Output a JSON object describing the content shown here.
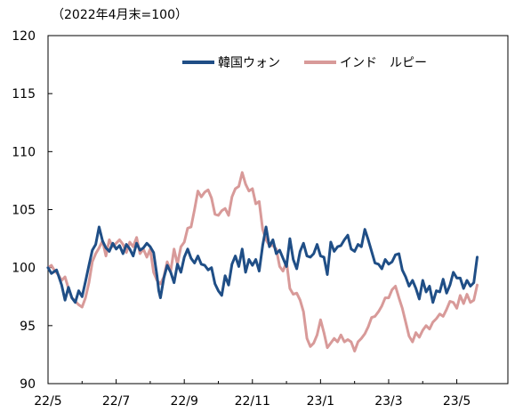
{
  "chart_data": {
    "type": "line",
    "note": "（2022年4月末=100）",
    "ylim": [
      90,
      120
    ],
    "yticks": [
      90,
      95,
      100,
      105,
      110,
      115,
      120
    ],
    "xlim": [
      0,
      13.5
    ],
    "xticks": [
      {
        "label": "22/5",
        "pos": 0
      },
      {
        "label": "22/7",
        "pos": 2
      },
      {
        "label": "22/9",
        "pos": 4
      },
      {
        "label": "22/11",
        "pos": 6
      },
      {
        "label": "23/1",
        "pos": 8
      },
      {
        "label": "23/3",
        "pos": 10
      },
      {
        "label": "23/5",
        "pos": 12
      }
    ],
    "grid": false,
    "legend_position": "top-right",
    "series": [
      {
        "name": "韓国ウォン",
        "color": "#1f4e86",
        "points": [
          [
            0,
            100
          ],
          [
            0.1,
            99.5
          ],
          [
            0.25,
            99.8
          ],
          [
            0.4,
            98.5
          ],
          [
            0.5,
            97.2
          ],
          [
            0.6,
            98.3
          ],
          [
            0.7,
            97.4
          ],
          [
            0.8,
            97.0
          ],
          [
            0.9,
            98.0
          ],
          [
            1.0,
            97.5
          ],
          [
            1.1,
            98.8
          ],
          [
            1.2,
            100.2
          ],
          [
            1.3,
            101.5
          ],
          [
            1.4,
            102.0
          ],
          [
            1.5,
            103.5
          ],
          [
            1.6,
            102.3
          ],
          [
            1.7,
            101.7
          ],
          [
            1.8,
            101.4
          ],
          [
            1.9,
            102.1
          ],
          [
            2.0,
            101.6
          ],
          [
            2.1,
            101.9
          ],
          [
            2.2,
            101.2
          ],
          [
            2.3,
            102.0
          ],
          [
            2.4,
            101.6
          ],
          [
            2.5,
            101.0
          ],
          [
            2.6,
            102.1
          ],
          [
            2.7,
            101.5
          ],
          [
            2.8,
            101.7
          ],
          [
            2.9,
            102.1
          ],
          [
            3.0,
            101.8
          ],
          [
            3.1,
            101.3
          ],
          [
            3.2,
            99.3
          ],
          [
            3.25,
            98.0
          ],
          [
            3.3,
            97.4
          ],
          [
            3.4,
            99.1
          ],
          [
            3.5,
            100.2
          ],
          [
            3.6,
            99.6
          ],
          [
            3.7,
            98.7
          ],
          [
            3.8,
            100.3
          ],
          [
            3.9,
            99.6
          ],
          [
            4.0,
            100.9
          ],
          [
            4.1,
            101.6
          ],
          [
            4.2,
            100.8
          ],
          [
            4.3,
            100.4
          ],
          [
            4.4,
            101.0
          ],
          [
            4.5,
            100.3
          ],
          [
            4.6,
            100.2
          ],
          [
            4.7,
            99.8
          ],
          [
            4.8,
            100.0
          ],
          [
            4.9,
            98.6
          ],
          [
            5.0,
            98.0
          ],
          [
            5.1,
            97.6
          ],
          [
            5.2,
            99.3
          ],
          [
            5.3,
            98.5
          ],
          [
            5.4,
            100.3
          ],
          [
            5.5,
            101.0
          ],
          [
            5.6,
            100.1
          ],
          [
            5.7,
            101.6
          ],
          [
            5.8,
            99.6
          ],
          [
            5.9,
            100.7
          ],
          [
            6.0,
            100.2
          ],
          [
            6.1,
            100.7
          ],
          [
            6.2,
            99.7
          ],
          [
            6.3,
            101.9
          ],
          [
            6.4,
            103.5
          ],
          [
            6.5,
            101.8
          ],
          [
            6.6,
            102.4
          ],
          [
            6.7,
            101.2
          ],
          [
            6.8,
            101.5
          ],
          [
            6.9,
            100.8
          ],
          [
            7.0,
            100.1
          ],
          [
            7.1,
            102.5
          ],
          [
            7.2,
            100.7
          ],
          [
            7.3,
            99.9
          ],
          [
            7.4,
            101.4
          ],
          [
            7.5,
            102.1
          ],
          [
            7.6,
            101.0
          ],
          [
            7.7,
            100.9
          ],
          [
            7.8,
            101.2
          ],
          [
            7.9,
            102.0
          ],
          [
            8.0,
            101.0
          ],
          [
            8.1,
            100.9
          ],
          [
            8.2,
            99.4
          ],
          [
            8.3,
            102.2
          ],
          [
            8.4,
            101.4
          ],
          [
            8.5,
            101.8
          ],
          [
            8.6,
            101.9
          ],
          [
            8.7,
            102.4
          ],
          [
            8.8,
            102.8
          ],
          [
            8.9,
            101.6
          ],
          [
            9.0,
            101.4
          ],
          [
            9.1,
            102.0
          ],
          [
            9.2,
            101.8
          ],
          [
            9.3,
            103.3
          ],
          [
            9.4,
            102.4
          ],
          [
            9.5,
            101.4
          ],
          [
            9.6,
            100.4
          ],
          [
            9.7,
            100.3
          ],
          [
            9.8,
            99.9
          ],
          [
            9.9,
            100.7
          ],
          [
            10.0,
            100.3
          ],
          [
            10.1,
            100.5
          ],
          [
            10.2,
            101.1
          ],
          [
            10.3,
            101.2
          ],
          [
            10.4,
            99.8
          ],
          [
            10.5,
            99.2
          ],
          [
            10.6,
            98.4
          ],
          [
            10.7,
            98.9
          ],
          [
            10.8,
            98.2
          ],
          [
            10.9,
            97.3
          ],
          [
            11.0,
            98.9
          ],
          [
            11.1,
            97.9
          ],
          [
            11.2,
            98.4
          ],
          [
            11.3,
            97.0
          ],
          [
            11.4,
            98.0
          ],
          [
            11.5,
            97.9
          ],
          [
            11.6,
            99.0
          ],
          [
            11.7,
            97.8
          ],
          [
            11.8,
            98.5
          ],
          [
            11.9,
            99.6
          ],
          [
            12.0,
            99.1
          ],
          [
            12.1,
            99.1
          ],
          [
            12.2,
            98.2
          ],
          [
            12.3,
            98.9
          ],
          [
            12.4,
            98.4
          ],
          [
            12.5,
            98.7
          ],
          [
            12.6,
            100.9
          ]
        ]
      },
      {
        "name": "インド　ルピー",
        "color": "#d89a99",
        "points": [
          [
            0,
            100
          ],
          [
            0.1,
            100.2
          ],
          [
            0.2,
            99.7
          ],
          [
            0.3,
            99.4
          ],
          [
            0.4,
            98.9
          ],
          [
            0.5,
            99.2
          ],
          [
            0.6,
            98.2
          ],
          [
            0.7,
            97.4
          ],
          [
            0.8,
            97.1
          ],
          [
            0.9,
            96.8
          ],
          [
            1.0,
            96.6
          ],
          [
            1.1,
            97.4
          ],
          [
            1.2,
            98.7
          ],
          [
            1.3,
            100.5
          ],
          [
            1.4,
            101.2
          ],
          [
            1.5,
            101.7
          ],
          [
            1.6,
            102.3
          ],
          [
            1.7,
            101.0
          ],
          [
            1.8,
            102.4
          ],
          [
            1.9,
            101.8
          ],
          [
            2.0,
            102.1
          ],
          [
            2.1,
            102.4
          ],
          [
            2.2,
            102.0
          ],
          [
            2.3,
            101.3
          ],
          [
            2.4,
            102.2
          ],
          [
            2.5,
            101.8
          ],
          [
            2.6,
            102.6
          ],
          [
            2.7,
            101.2
          ],
          [
            2.8,
            101.6
          ],
          [
            2.9,
            100.9
          ],
          [
            3.0,
            101.6
          ],
          [
            3.1,
            99.6
          ],
          [
            3.2,
            98.9
          ],
          [
            3.3,
            98.6
          ],
          [
            3.4,
            99.2
          ],
          [
            3.5,
            100.5
          ],
          [
            3.6,
            99.7
          ],
          [
            3.7,
            101.6
          ],
          [
            3.8,
            100.3
          ],
          [
            3.9,
            101.8
          ],
          [
            4.0,
            102.2
          ],
          [
            4.1,
            103.4
          ],
          [
            4.2,
            103.5
          ],
          [
            4.3,
            105.0
          ],
          [
            4.4,
            106.6
          ],
          [
            4.5,
            106.1
          ],
          [
            4.6,
            106.5
          ],
          [
            4.7,
            106.7
          ],
          [
            4.8,
            106.0
          ],
          [
            4.9,
            104.6
          ],
          [
            5.0,
            104.5
          ],
          [
            5.1,
            104.9
          ],
          [
            5.2,
            105.1
          ],
          [
            5.3,
            104.5
          ],
          [
            5.4,
            106.1
          ],
          [
            5.5,
            106.8
          ],
          [
            5.6,
            107.0
          ],
          [
            5.7,
            108.2
          ],
          [
            5.8,
            107.2
          ],
          [
            5.9,
            106.6
          ],
          [
            6.0,
            106.8
          ],
          [
            6.1,
            105.5
          ],
          [
            6.2,
            105.7
          ],
          [
            6.3,
            103.3
          ],
          [
            6.4,
            102.4
          ],
          [
            6.5,
            101.9
          ],
          [
            6.6,
            101.9
          ],
          [
            6.7,
            101.6
          ],
          [
            6.8,
            100.1
          ],
          [
            6.9,
            99.7
          ],
          [
            7.0,
            100.5
          ],
          [
            7.1,
            98.2
          ],
          [
            7.2,
            97.7
          ],
          [
            7.3,
            97.8
          ],
          [
            7.4,
            97.2
          ],
          [
            7.5,
            96.2
          ],
          [
            7.6,
            93.9
          ],
          [
            7.7,
            93.2
          ],
          [
            7.8,
            93.5
          ],
          [
            7.9,
            94.2
          ],
          [
            8.0,
            95.5
          ],
          [
            8.1,
            94.4
          ],
          [
            8.2,
            93.1
          ],
          [
            8.3,
            93.5
          ],
          [
            8.4,
            93.9
          ],
          [
            8.5,
            93.6
          ],
          [
            8.6,
            94.2
          ],
          [
            8.7,
            93.6
          ],
          [
            8.8,
            93.8
          ],
          [
            8.9,
            93.6
          ],
          [
            9.0,
            92.8
          ],
          [
            9.1,
            93.6
          ],
          [
            9.2,
            93.9
          ],
          [
            9.3,
            94.3
          ],
          [
            9.4,
            94.9
          ],
          [
            9.5,
            95.7
          ],
          [
            9.6,
            95.8
          ],
          [
            9.7,
            96.2
          ],
          [
            9.8,
            96.7
          ],
          [
            9.9,
            97.4
          ],
          [
            10.0,
            97.4
          ],
          [
            10.1,
            98.1
          ],
          [
            10.2,
            98.4
          ],
          [
            10.3,
            97.4
          ],
          [
            10.4,
            96.5
          ],
          [
            10.5,
            95.3
          ],
          [
            10.6,
            94.1
          ],
          [
            10.7,
            93.6
          ],
          [
            10.8,
            94.4
          ],
          [
            10.9,
            94.0
          ],
          [
            11.0,
            94.6
          ],
          [
            11.1,
            95.0
          ],
          [
            11.2,
            94.7
          ],
          [
            11.3,
            95.3
          ],
          [
            11.4,
            95.6
          ],
          [
            11.5,
            96.0
          ],
          [
            11.6,
            95.8
          ],
          [
            11.7,
            96.4
          ],
          [
            11.8,
            97.1
          ],
          [
            11.9,
            97.0
          ],
          [
            12.0,
            96.5
          ],
          [
            12.1,
            97.6
          ],
          [
            12.2,
            96.9
          ],
          [
            12.3,
            97.7
          ],
          [
            12.4,
            97.0
          ],
          [
            12.5,
            97.2
          ],
          [
            12.6,
            98.5
          ]
        ]
      }
    ]
  }
}
